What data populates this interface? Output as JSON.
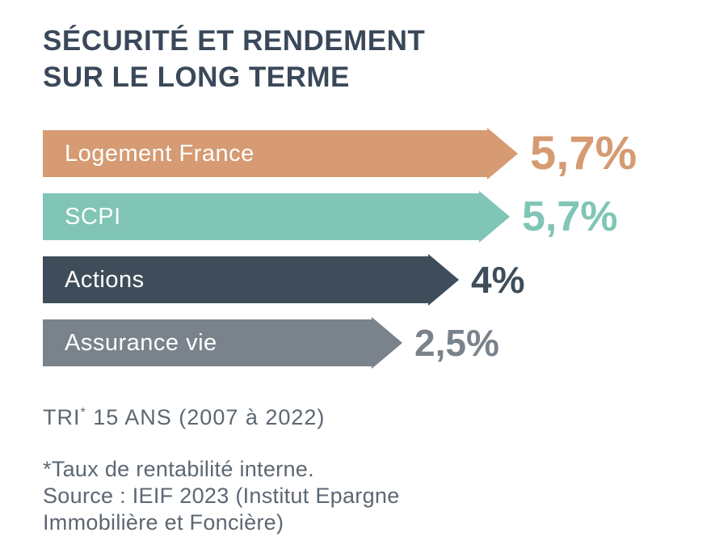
{
  "title": {
    "line1": "SÉCURITÉ ET RENDEMENT",
    "line2": "SUR LE LONG TERME"
  },
  "chart_data": {
    "type": "bar",
    "orientation": "horizontal",
    "title": "SÉCURITÉ ET RENDEMENT SUR LE LONG TERME",
    "categories": [
      "Logement France",
      "SCPI",
      "Actions",
      "Assurance vie"
    ],
    "values": [
      5.7,
      5.7,
      4,
      2.5
    ],
    "unit": "%",
    "value_axis_note": "bar lengths are stylized, not to scale from zero",
    "bars": [
      {
        "label": "Logement France",
        "value": 5.7,
        "value_label": "5,7%",
        "color": "#D69B72"
      },
      {
        "label": "SCPI",
        "value": 5.7,
        "value_label": "5,7%",
        "color": "#80C5B5"
      },
      {
        "label": "Actions",
        "value": 4,
        "value_label": "4%",
        "color": "#3F4D5B"
      },
      {
        "label": "Assurance vie",
        "value": 2.5,
        "value_label": "2,5%",
        "color": "#7A838C"
      }
    ],
    "period_label": "TRI* 15 ANS (2007 à 2022)"
  },
  "caption": {
    "prefix": "TRI",
    "superscript": "*",
    "rest": " 15 ANS (2007 à 2022)"
  },
  "footnote": {
    "lines": [
      "*Taux de rentabilité interne.",
      "Source : IEIF 2023 (Institut Epargne",
      "Immobilière et Foncière)"
    ]
  },
  "colors": {
    "title_text": "#3A4859",
    "body_text": "#5D6772",
    "bar_label_text": "#FFFFFF",
    "background": "#FFFFFF"
  }
}
